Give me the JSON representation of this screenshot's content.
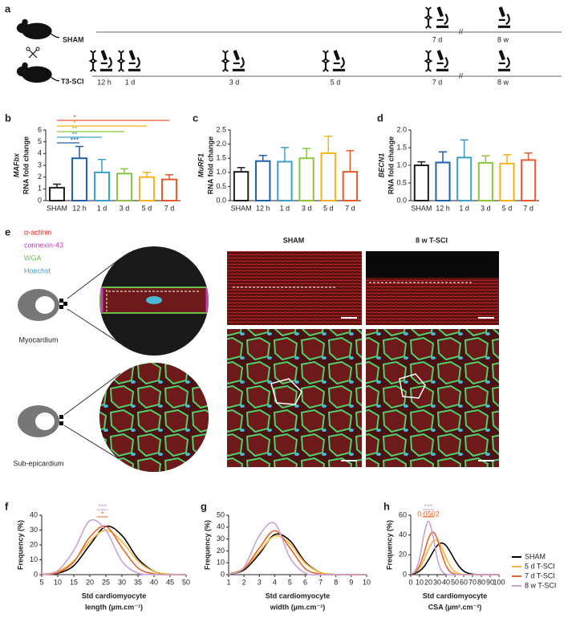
{
  "panels": [
    "a",
    "b",
    "c",
    "d",
    "e",
    "f",
    "g",
    "h"
  ],
  "timeline": {
    "sham": {
      "group": "SHAM",
      "times": [
        "7 d",
        "8 w"
      ]
    },
    "sci": {
      "group": "T3-SCI",
      "times": [
        "12 h",
        "1 d",
        "3 d",
        "5 d",
        "7 d",
        "8 w"
      ]
    }
  },
  "illustration": {
    "stains": [
      "α-actinin",
      "connexin-43",
      "WGA",
      "Hoechst"
    ],
    "regions": [
      "Myocardium",
      "Sub-epicardium"
    ],
    "columns": [
      "SHAM",
      "8 w T-SCI"
    ]
  },
  "chart_data": [
    {
      "type": "bar",
      "gene": "MAFbx",
      "y_label": "RNA fold change",
      "categories": [
        "SHAM",
        "12 h",
        "1 d",
        "3 d",
        "5 d",
        "7 d"
      ],
      "values": [
        1.1,
        3.6,
        2.4,
        2.3,
        2.0,
        1.8
      ],
      "errors": [
        0.3,
        1.0,
        1.1,
        0.4,
        0.4,
        0.4
      ],
      "colors": [
        "#231f20",
        "#1f5fa6",
        "#3aa0c8",
        "#8cc63f",
        "#f5b31b",
        "#e85a2b"
      ],
      "ylim": [
        0,
        6
      ],
      "yticks": [
        0,
        1,
        2,
        3,
        4,
        5,
        6
      ],
      "significance": [
        {
          "label": "***",
          "color": "#1f5fa6"
        },
        {
          "label": "**",
          "color": "#3aa0c8"
        },
        {
          "label": "**",
          "color": "#8cc63f"
        },
        {
          "label": "*",
          "color": "#f5b31b"
        },
        {
          "label": "*",
          "color": "#e85a2b"
        }
      ]
    },
    {
      "type": "bar",
      "gene": "MuRF1",
      "y_label": "RNA fold change",
      "categories": [
        "SHAM",
        "12 h",
        "1 d",
        "3 d",
        "5 d",
        "7 d"
      ],
      "values": [
        1.02,
        1.4,
        1.38,
        1.5,
        1.68,
        1.02
      ],
      "errors": [
        0.15,
        0.2,
        0.5,
        0.35,
        0.6,
        0.75
      ],
      "colors": [
        "#231f20",
        "#1f5fa6",
        "#3aa0c8",
        "#8cc63f",
        "#f5b31b",
        "#e85a2b"
      ],
      "ylim": [
        0,
        2.5
      ],
      "yticks": [
        {
          "value": 0,
          "label": "0.0"
        },
        0.5,
        {
          "value": 1,
          "label": "1.0"
        },
        1.5,
        {
          "value": 2,
          "label": "2.0"
        },
        2.5
      ]
    },
    {
      "type": "bar",
      "gene": "BECN1",
      "y_label": "RNA fold change",
      "categories": [
        "SHAM",
        "12 h",
        "1 d",
        "3 d",
        "5 d",
        "7 d"
      ],
      "values": [
        1.0,
        1.08,
        1.22,
        1.07,
        1.05,
        1.15
      ],
      "errors": [
        0.1,
        0.3,
        0.5,
        0.2,
        0.25,
        0.2
      ],
      "colors": [
        "#231f20",
        "#1f5fa6",
        "#3aa0c8",
        "#8cc63f",
        "#f5b31b",
        "#e85a2b"
      ],
      "ylim": [
        0,
        2
      ],
      "yticks": [
        {
          "value": 0,
          "label": "0.0"
        },
        0.5,
        {
          "value": 1,
          "label": "1.0"
        },
        1.5,
        {
          "value": 2,
          "label": "2.0"
        }
      ]
    },
    {
      "type": "line",
      "y_label": "Frequency (%)",
      "x_label": [
        "Std cardiomyocyte",
        "length (µm.cm⁻¹)"
      ],
      "x": [
        5,
        10,
        15,
        20,
        25,
        30,
        35,
        40,
        45,
        50
      ],
      "series": [
        {
          "color": "#000000",
          "values": [
            0.1,
            0.9,
            6.1,
            20,
            32.5,
            26.4,
            10.7,
            2.2,
            0.2,
            0
          ]
        },
        {
          "color": "#f7b733",
          "values": [
            0.3,
            2.1,
            9.2,
            22.3,
            30,
            22.3,
            9.2,
            2.1,
            0.3,
            0
          ]
        },
        {
          "color": "#e8642c",
          "values": [
            0.1,
            1.3,
            8.6,
            25.3,
            32.5,
            18.2,
            4.5,
            0.5,
            0,
            0
          ]
        },
        {
          "color": "#c8a2d8",
          "values": [
            0.2,
            2.7,
            16.3,
            36.3,
            29.8,
            9.0,
            1.0,
            0.1,
            0,
            0
          ]
        }
      ],
      "xlim": [
        5,
        50
      ],
      "xticks": [
        5,
        10,
        15,
        20,
        25,
        30,
        35,
        40,
        45,
        50
      ],
      "ylim": [
        0,
        40
      ],
      "yticks": [
        0,
        10,
        20,
        30,
        40
      ],
      "annotations": [
        {
          "label": "***",
          "color": "#c8a2d8"
        },
        {
          "label": "*",
          "color": "#e8642c"
        }
      ]
    },
    {
      "type": "line",
      "y_label": "Frequency (%)",
      "x_label": [
        "Std cardiomyocyte",
        "width (µm.cm⁻¹)"
      ],
      "x": [
        1,
        2,
        3,
        4,
        5,
        6,
        7,
        8,
        9,
        10
      ],
      "series": [
        {
          "color": "#000000",
          "values": [
            0.4,
            3.9,
            17.4,
            33.7,
            28.6,
            10.6,
            1.7,
            0.1,
            0,
            0
          ]
        },
        {
          "color": "#f7b733",
          "values": [
            0.7,
            5.3,
            19.1,
            32.5,
            25.9,
            9.7,
            1.7,
            0.1,
            0,
            0
          ]
        },
        {
          "color": "#e8642c",
          "values": [
            0.4,
            5.0,
            22.4,
            37,
            22.4,
            5.0,
            0.4,
            0,
            0,
            0
          ]
        },
        {
          "color": "#c8a2d8",
          "values": [
            0.3,
            6.2,
            32.8,
            43.2,
            14.3,
            1.2,
            0,
            0,
            0,
            0
          ]
        }
      ],
      "xlim": [
        1,
        10
      ],
      "xticks": [
        1,
        2,
        3,
        4,
        5,
        6,
        7,
        8,
        9,
        10
      ],
      "ylim": [
        0,
        50
      ],
      "yticks": [
        0,
        10,
        20,
        30,
        40,
        50
      ]
    },
    {
      "type": "line",
      "y_label": "Frequency (%)",
      "x_label": [
        "Std cardiomyocyte",
        "CSA (µm².cm⁻²)"
      ],
      "x": [
        0,
        5,
        10,
        15,
        20,
        25,
        30,
        35,
        40,
        45,
        50,
        55,
        60,
        65,
        70,
        75,
        80,
        85,
        90,
        95,
        100
      ],
      "series": [
        {
          "name": "SHAM",
          "color": "#000000",
          "values": [
            0.5,
            1.4,
            3.6,
            8.0,
            14.7,
            22.6,
            29.3,
            32,
            29.3,
            22.6,
            14.7,
            8.0,
            3.6,
            1.4,
            0.5,
            0.1,
            0,
            0,
            0,
            0,
            0
          ]
        },
        {
          "name": "5 d T-SCI",
          "color": "#f7b733",
          "values": [
            0.7,
            2.5,
            6.9,
            15.0,
            25.4,
            33.5,
            34.3,
            27.4,
            17.0,
            8.3,
            3.1,
            0.9,
            0.2,
            0,
            0,
            0,
            0,
            0,
            0,
            0,
            0
          ]
        },
        {
          "name": "7 d T-SCI",
          "color": "#e8642c",
          "values": [
            0.6,
            2.7,
            9.1,
            21.5,
            36.2,
            43,
            36.2,
            21.5,
            9.1,
            2.7,
            0.6,
            0.1,
            0,
            0,
            0,
            0,
            0,
            0,
            0,
            0,
            0
          ]
        },
        {
          "name": "8 w T-SCI",
          "color": "#c8a2d8",
          "values": [
            0.5,
            3.8,
            16.5,
            40.2,
            54,
            40.2,
            16.5,
            3.8,
            0.5,
            0,
            0,
            0,
            0,
            0,
            0,
            0,
            0,
            0,
            0,
            0,
            0
          ]
        }
      ],
      "xlim": [
        0,
        100
      ],
      "xticks": [
        0,
        10,
        20,
        30,
        40,
        50,
        60,
        70,
        80,
        90,
        100
      ],
      "ylim": [
        0,
        60
      ],
      "yticks": [
        0,
        20,
        40,
        60
      ],
      "legend": "right",
      "annotations": [
        {
          "label": "***",
          "color": "#c8a2d8"
        },
        {
          "label": "0.0502",
          "color": "#e8642c"
        }
      ]
    }
  ]
}
